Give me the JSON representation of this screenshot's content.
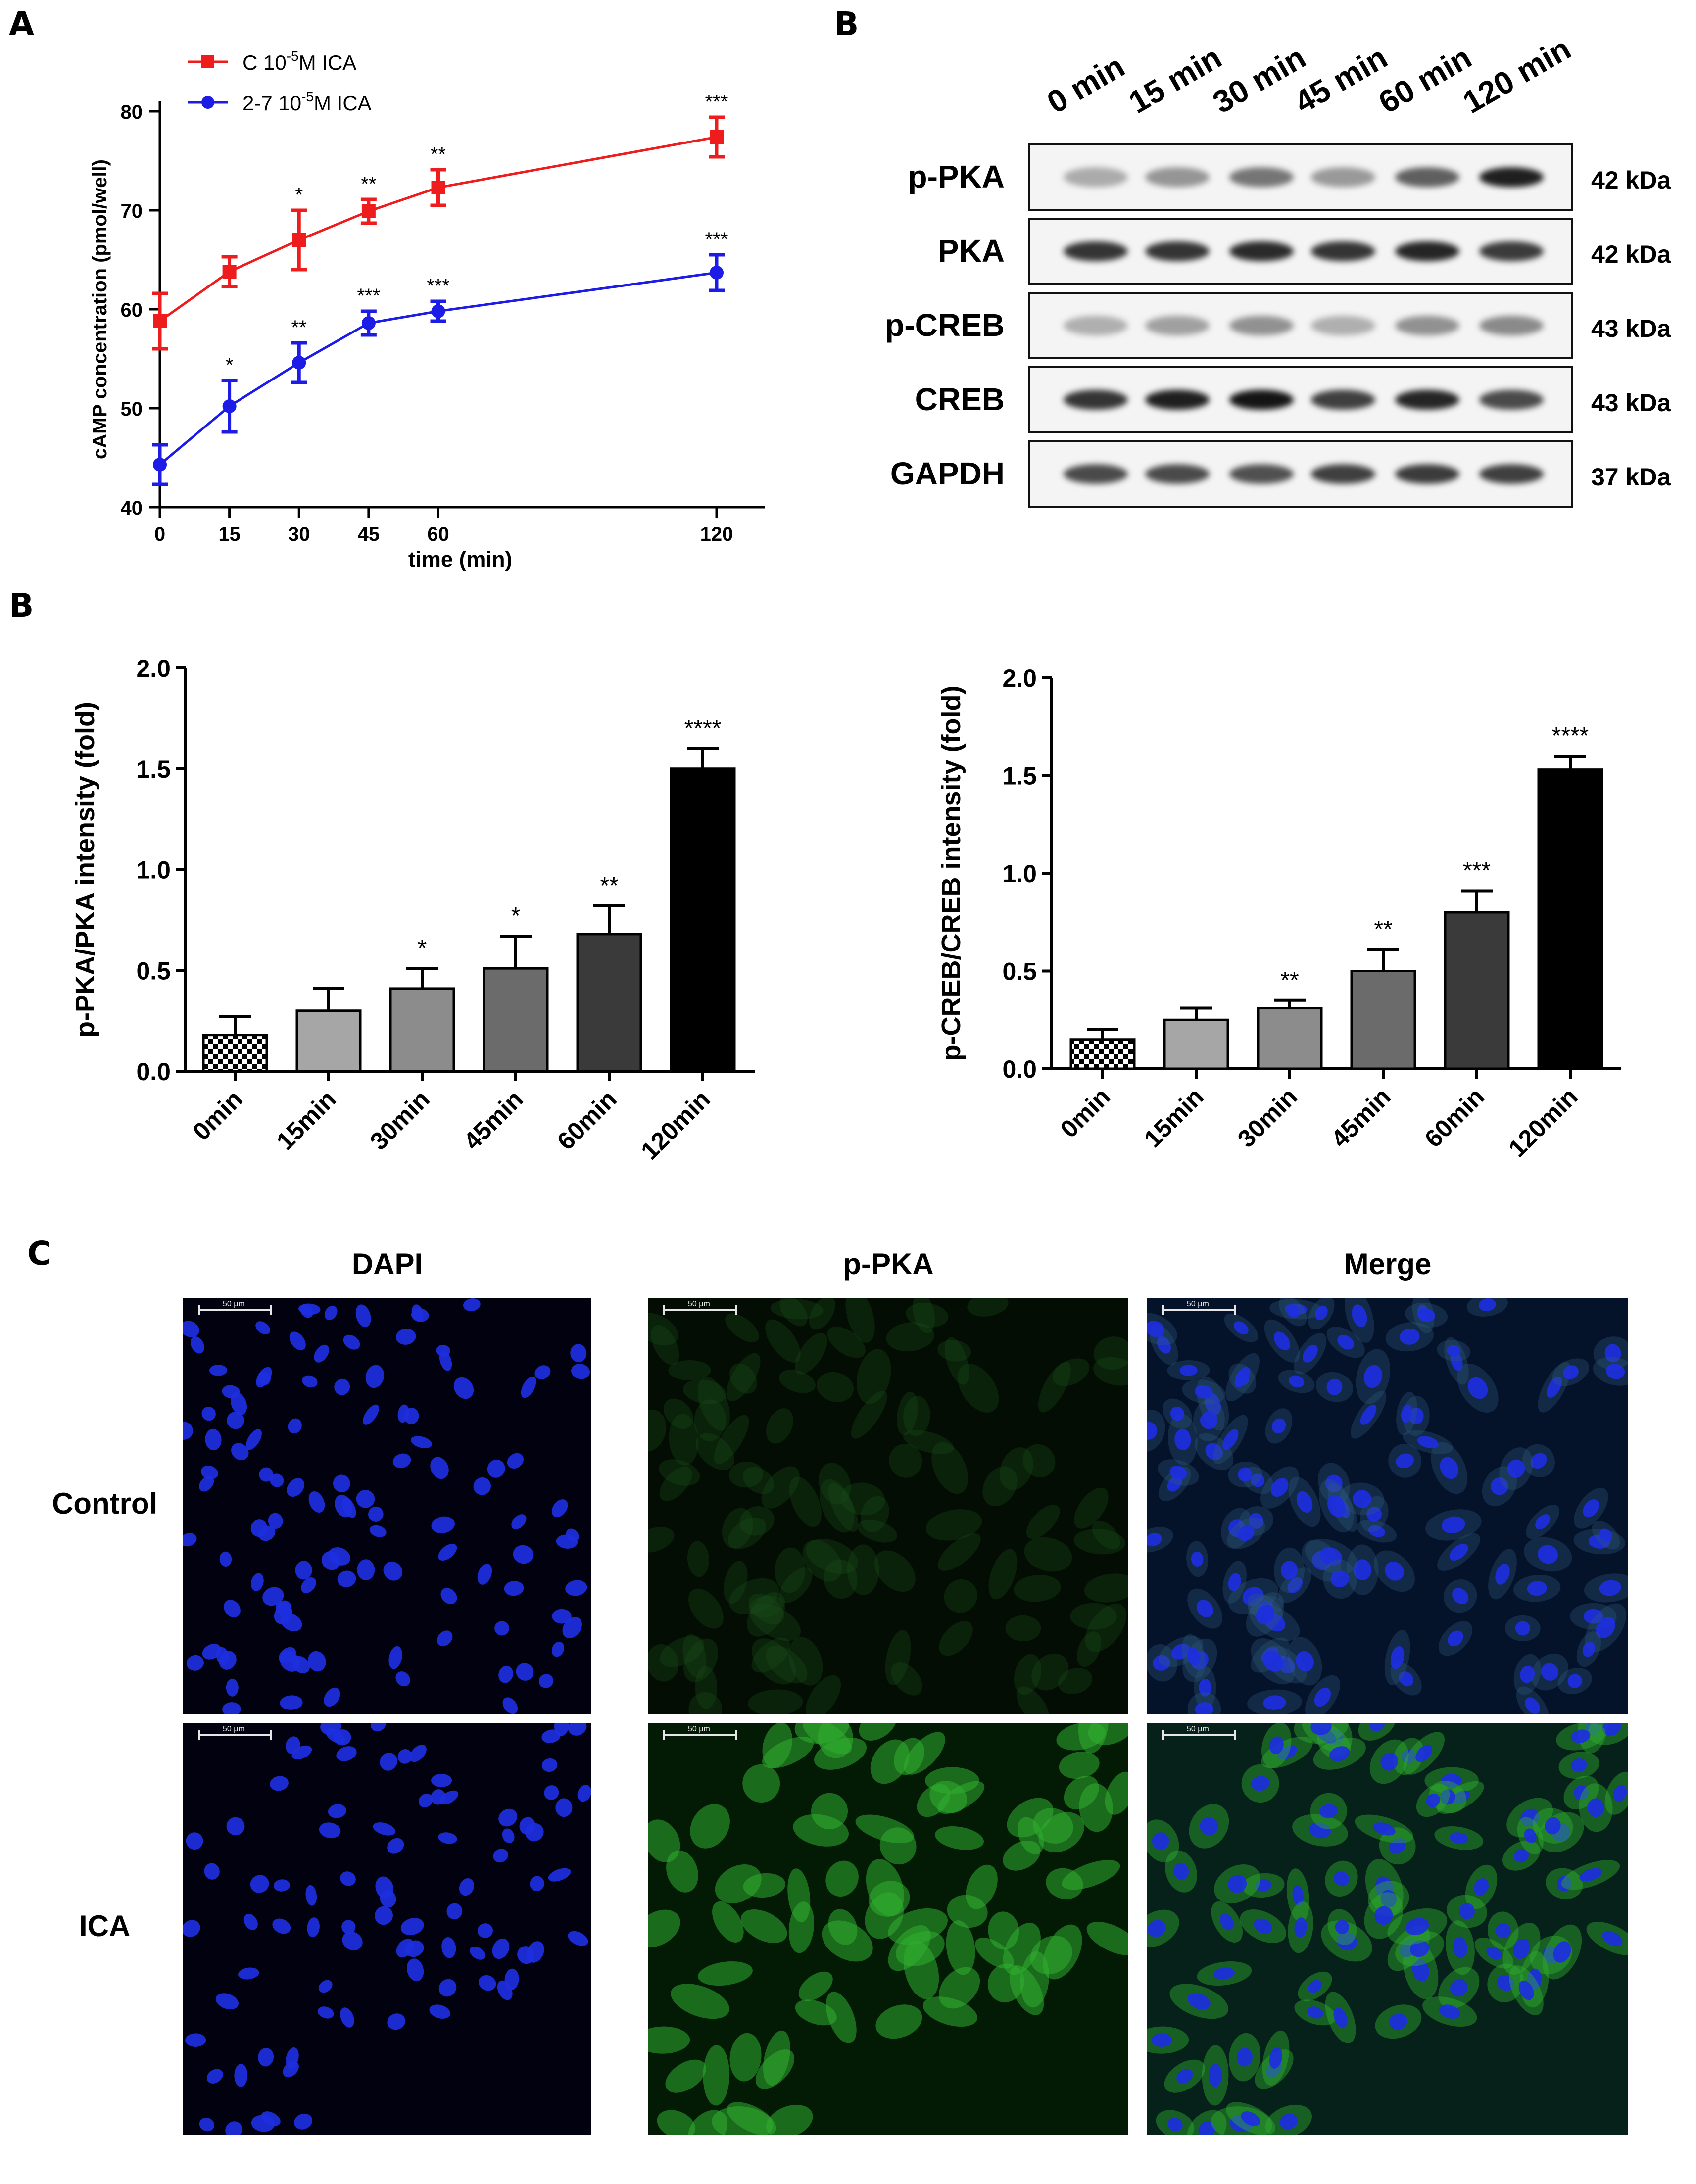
{
  "panels": {
    "a": "A",
    "b_blot": "B",
    "b_bars": "B",
    "c": "C"
  },
  "chart_data": [
    {
      "type": "line",
      "x": [
        0,
        15,
        30,
        45,
        60,
        120
      ],
      "xlabel": "time (min)",
      "ylabel": "cAMP concentration (pmol/well)",
      "ylim": [
        40,
        80
      ],
      "yticks": [
        40,
        50,
        60,
        70,
        80
      ],
      "legend_position": "top-left",
      "series": [
        {
          "legend_main": "C   10",
          "legend_sup": "-5",
          "legend_tail": "M ICA",
          "color": "#ee1c1c",
          "marker": "square",
          "values": [
            58.8,
            63.8,
            67.0,
            69.9,
            72.3,
            77.4
          ],
          "errors": [
            2.8,
            1.5,
            3.0,
            1.2,
            1.8,
            2.0
          ],
          "annotations": [
            "",
            "",
            "*",
            "**",
            "**",
            "***"
          ]
        },
        {
          "legend_main": "2-7 10",
          "legend_sup": "-5",
          "legend_tail": "M ICA",
          "color": "#1c1ce6",
          "marker": "circle",
          "values": [
            44.3,
            50.2,
            54.6,
            58.6,
            59.8,
            63.7
          ],
          "errors": [
            2.0,
            2.6,
            2.0,
            1.2,
            1.0,
            1.8
          ],
          "annotations": [
            "",
            "*",
            "**",
            "***",
            "***",
            "***"
          ]
        }
      ]
    },
    {
      "type": "bar",
      "categories": [
        "0min",
        "15min",
        "30min",
        "45min",
        "60min",
        "120min"
      ],
      "values": [
        0.18,
        0.3,
        0.41,
        0.51,
        0.68,
        1.5
      ],
      "errors": [
        0.09,
        0.11,
        0.1,
        0.16,
        0.14,
        0.1
      ],
      "annotations": [
        "",
        "",
        "*",
        "*",
        "**",
        "****"
      ],
      "colors": [
        "checker",
        "#a6a6a6",
        "#8c8c8c",
        "#6b6b6b",
        "#3a3a3a",
        "#000000"
      ],
      "ylabel": "p-PKA/PKA intensity (fold)",
      "ylim": [
        0,
        2.0
      ],
      "yticks": [
        "0.0",
        "0.5",
        "1.0",
        "1.5",
        "2.0"
      ]
    },
    {
      "type": "bar",
      "categories": [
        "0min",
        "15min",
        "30min",
        "45min",
        "60min",
        "120min"
      ],
      "values": [
        0.15,
        0.25,
        0.31,
        0.5,
        0.8,
        1.53
      ],
      "errors": [
        0.05,
        0.06,
        0.04,
        0.11,
        0.11,
        0.07
      ],
      "annotations": [
        "",
        "",
        "**",
        "**",
        "***",
        "****"
      ],
      "colors": [
        "checker",
        "#a6a6a6",
        "#8c8c8c",
        "#6b6b6b",
        "#3a3a3a",
        "#000000"
      ],
      "ylabel": "p-CREB/CREB intensity (fold)",
      "ylim": [
        0,
        2.0
      ],
      "yticks": [
        "0.0",
        "0.5",
        "1.0",
        "1.5",
        "2.0"
      ]
    }
  ],
  "western_blot": {
    "lanes": [
      "0 min",
      "15 min",
      "30 min",
      "45 min",
      "60 min",
      "120 min"
    ],
    "rows": [
      {
        "label": "p-PKA",
        "kda": "42 kDa",
        "intensity": [
          0.3,
          0.4,
          0.55,
          0.38,
          0.65,
          0.95
        ]
      },
      {
        "label": "PKA",
        "kda": "42 kDa",
        "intensity": [
          0.85,
          0.85,
          0.9,
          0.85,
          0.92,
          0.82
        ]
      },
      {
        "label": "p-CREB",
        "kda": "43 kDa",
        "intensity": [
          0.28,
          0.35,
          0.42,
          0.28,
          0.42,
          0.45
        ]
      },
      {
        "label": "CREB",
        "kda": "43 kDa",
        "intensity": [
          0.85,
          0.95,
          1.0,
          0.8,
          0.92,
          0.75
        ]
      },
      {
        "label": "GAPDH",
        "kda": "37 kDa",
        "intensity": [
          0.75,
          0.75,
          0.72,
          0.8,
          0.82,
          0.8
        ]
      }
    ]
  },
  "microscopy": {
    "columns": [
      "DAPI",
      "p-PKA",
      "Merge"
    ],
    "rows": [
      "Control",
      "ICA"
    ],
    "scale_label": "50 μm",
    "nucleus_color": "#1d2fe0",
    "green_color": "#2fae2f"
  }
}
